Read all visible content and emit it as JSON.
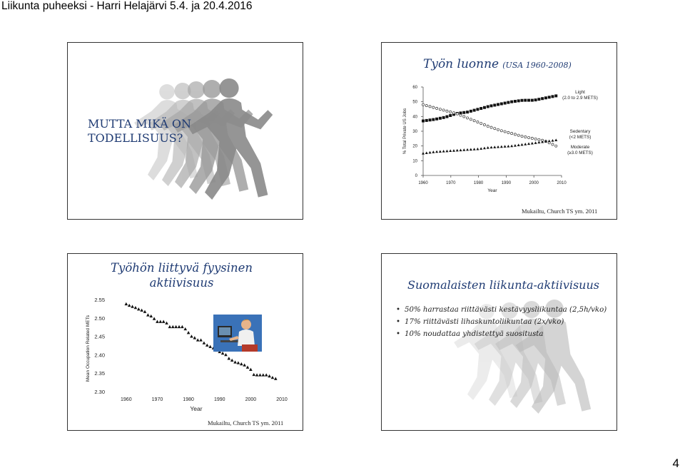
{
  "header": {
    "title": "Liikunta puheeksi - Harri Helajärvi 5.4. ja 20.4.2016"
  },
  "page_number": "4",
  "slide1": {
    "text_line1": "MUTTA MIKÄ ON",
    "text_line2": "TODELLISUUS?"
  },
  "slide2": {
    "title_main": "Työn luonne",
    "title_sub": "(USA 1960-2008)",
    "source": "Mukailtu, Church TS ym. 2011",
    "chart_data": {
      "type": "line",
      "xlabel": "Year",
      "ylabel": "% Total Private US Jobs",
      "xlim": [
        1960,
        2010
      ],
      "ylim": [
        0,
        60
      ],
      "xticks": [
        "1960",
        "1970",
        "1980",
        "1990",
        "2000",
        "2010"
      ],
      "yticks": [
        "0",
        "10",
        "20",
        "30",
        "40",
        "50",
        "60"
      ],
      "grid": false,
      "series": [
        {
          "name": "Light",
          "name2": "(2.0 to 2.9 METS)",
          "marker": "square",
          "x": [
            1960,
            1964,
            1968,
            1972,
            1976,
            1980,
            1984,
            1988,
            1992,
            1996,
            2000,
            2004,
            2008
          ],
          "y": [
            37,
            38,
            39.5,
            42,
            43,
            45,
            47,
            48.5,
            50,
            51,
            51,
            52.5,
            54
          ]
        },
        {
          "name": "Sedentary",
          "name2": "(<2 METS)",
          "marker": "open-circle",
          "x": [
            1960,
            1964,
            1968,
            1972,
            1976,
            1980,
            1984,
            1988,
            1992,
            1996,
            2000,
            2004,
            2008
          ],
          "y": [
            48,
            46,
            44,
            42,
            39,
            36,
            33,
            30.5,
            28.5,
            26.5,
            25,
            23.5,
            20
          ]
        },
        {
          "name": "Moderate",
          "name2": "(≥3.0 METS)",
          "marker": "triangle",
          "x": [
            1960,
            1964,
            1968,
            1972,
            1976,
            1980,
            1984,
            1988,
            1992,
            1996,
            2000,
            2004,
            2008
          ],
          "y": [
            15,
            16,
            16.5,
            17,
            17.5,
            18,
            19,
            19.5,
            20,
            21,
            22,
            23,
            24
          ]
        }
      ]
    }
  },
  "slide3": {
    "title_line1": "Työhön liittyvä fyysinen",
    "title_line2": "aktiivisuus",
    "source": "Mukailtu, Church TS ym. 2011",
    "chart_data": {
      "type": "scatter",
      "xlabel": "Year",
      "ylabel": "Mean Occupation Related METs",
      "xlim": [
        1955,
        2010
      ],
      "ylim": [
        2.3,
        2.55
      ],
      "xticks": [
        "1960",
        "1970",
        "1980",
        "1990",
        "2000",
        "2010"
      ],
      "yticks": [
        "2.30",
        "2.35",
        "2.40",
        "2.45",
        "2.50",
        "2.55"
      ],
      "grid": false,
      "x": [
        1960,
        1961,
        1962,
        1963,
        1964,
        1965,
        1966,
        1967,
        1968,
        1969,
        1970,
        1971,
        1972,
        1973,
        1974,
        1975,
        1976,
        1977,
        1978,
        1979,
        1980,
        1981,
        1982,
        1983,
        1984,
        1985,
        1986,
        1987,
        1988,
        1989,
        1990,
        1991,
        1992,
        1993,
        1994,
        1995,
        1996,
        1997,
        1998,
        1999,
        2000,
        2001,
        2002,
        2003,
        2004,
        2005,
        2006,
        2007,
        2008
      ],
      "y": [
        2.538,
        2.534,
        2.531,
        2.528,
        2.524,
        2.521,
        2.517,
        2.508,
        2.505,
        2.498,
        2.49,
        2.49,
        2.49,
        2.486,
        2.476,
        2.476,
        2.476,
        2.476,
        2.476,
        2.47,
        2.46,
        2.45,
        2.446,
        2.44,
        2.44,
        2.432,
        2.426,
        2.422,
        2.418,
        2.412,
        2.408,
        2.404,
        2.4,
        2.39,
        2.385,
        2.38,
        2.378,
        2.375,
        2.372,
        2.366,
        2.36,
        2.346,
        2.345,
        2.345,
        2.345,
        2.345,
        2.342,
        2.338,
        2.335
      ]
    }
  },
  "slide4": {
    "title": "Suomalaisten liikunta-aktiivisuus",
    "bullets": [
      "50% harrastaa riittävästi kestävyysliikuntaa (2,5h/vko)",
      "17% riittävästi lihaskuntoliikuntaa (2x/vko)",
      "10% noudattaa yhdistettyä suositusta"
    ]
  },
  "colors": {
    "title_blue": "#1f3b73",
    "runner_gray": "#9a9a9a"
  }
}
